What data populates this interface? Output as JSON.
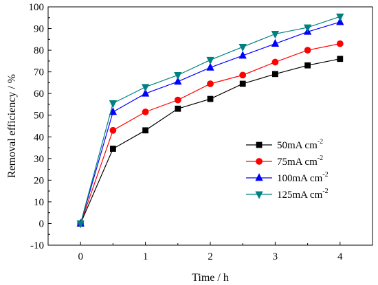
{
  "chart_data": {
    "type": "line",
    "xlabel": "Time / h",
    "ylabel": "Removal efficiency / %",
    "xlim": [
      -0.5,
      4.5
    ],
    "ylim": [
      -10,
      100
    ],
    "xticks": [
      0,
      1,
      2,
      3,
      4
    ],
    "yticks": [
      -10,
      0,
      10,
      20,
      30,
      40,
      50,
      60,
      70,
      80,
      90,
      100
    ],
    "grid": false,
    "legend_position": "lower-right",
    "x": [
      0,
      0.5,
      1,
      1.5,
      2,
      2.5,
      3,
      3.5,
      4
    ],
    "series": [
      {
        "name": "50mA cm",
        "superscript": "-2",
        "color": "#000000",
        "marker": "square",
        "values": [
          0,
          34.5,
          43,
          53,
          57.5,
          64.5,
          69,
          73,
          76
        ]
      },
      {
        "name": "75mA cm",
        "superscript": "-2",
        "color": "#ff0000",
        "marker": "circle",
        "values": [
          0,
          43,
          51.5,
          57,
          64.5,
          68.5,
          74.5,
          80,
          83
        ]
      },
      {
        "name": "100mA cm",
        "superscript": "-2",
        "color": "#0000ff",
        "marker": "triangle-up",
        "values": [
          0,
          51.5,
          60,
          65.5,
          72,
          77.5,
          83,
          88.5,
          93
        ]
      },
      {
        "name": "125mA cm",
        "superscript": "-2",
        "color": "#008080",
        "marker": "triangle-down",
        "values": [
          0,
          55.5,
          63,
          68.5,
          75.5,
          81.5,
          87.5,
          90.5,
          95.5
        ]
      }
    ]
  }
}
